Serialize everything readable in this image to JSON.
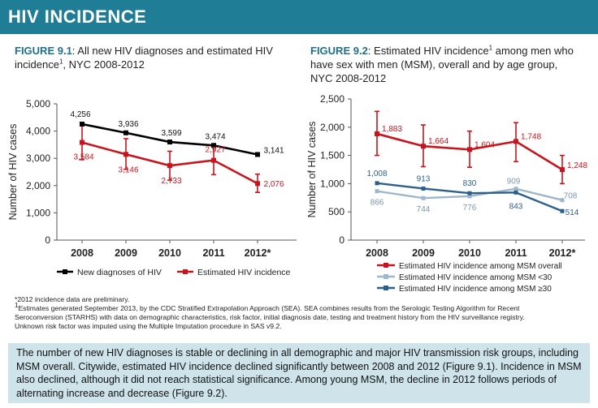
{
  "header": {
    "title": "HIV INCIDENCE"
  },
  "figure1": {
    "label": "FIGURE 9.1",
    "caption_a": ": All new HIV diagnoses and estimated HIV",
    "caption_b": "incidence",
    "caption_sup": "1",
    "caption_c": ", NYC 2008-2012"
  },
  "figure2": {
    "label": "FIGURE 9.2",
    "caption_a": ": Estimated HIV incidence",
    "caption_sup": "1",
    "caption_b": " among men who",
    "caption_c": "have sex with men (MSM), overall and by age group,",
    "caption_d": "NYC 2008-2012"
  },
  "chart_data": [
    {
      "type": "line",
      "title": "All new HIV diagnoses and estimated HIV incidence, NYC 2008-2012",
      "ylabel": "Number of HIV cases",
      "xlabel": "",
      "categories": [
        "2008",
        "2009",
        "2010",
        "2011",
        "2012*"
      ],
      "ylim": [
        0,
        5000
      ],
      "yticks": [
        0,
        1000,
        2000,
        3000,
        4000,
        5000
      ],
      "ytick_labels": [
        "0",
        "1,000",
        "2,000",
        "3,000",
        "4,000",
        "5,000"
      ],
      "grid": false,
      "legend_position": "bottom",
      "series": [
        {
          "name": "New diagnoses of HIV",
          "color": "#000000",
          "values": [
            4256,
            3936,
            3599,
            3474,
            3141
          ],
          "labels": [
            "4,256",
            "3,936",
            "3,599",
            "3,474",
            "3,141"
          ]
        },
        {
          "name": "Estimated HIV incidence",
          "color": "#c8141c",
          "values": [
            3584,
            3146,
            2733,
            2927,
            2076
          ],
          "labels": [
            "3,584",
            "3,146",
            "2,733",
            "2,927",
            "2,076"
          ],
          "ci_low": [
            2950,
            2600,
            2200,
            2400,
            1750
          ],
          "ci_high": [
            4200,
            3720,
            3260,
            3480,
            2420
          ]
        }
      ]
    },
    {
      "type": "line",
      "title": "Estimated HIV incidence among men who have sex with men (MSM), overall and by age group, NYC 2008-2012",
      "ylabel": "Number of HIV cases",
      "xlabel": "",
      "categories": [
        "2008",
        "2009",
        "2010",
        "2011",
        "2012*"
      ],
      "ylim": [
        0,
        2500
      ],
      "yticks": [
        0,
        500,
        1000,
        1500,
        2000,
        2500
      ],
      "ytick_labels": [
        "0",
        "500",
        "1,000",
        "1,500",
        "2,000",
        "2,500"
      ],
      "grid": false,
      "legend_position": "bottom",
      "series": [
        {
          "name": "Estimated HIV incidence among MSM overall",
          "color": "#c8141c",
          "values": [
            1883,
            1664,
            1604,
            1748,
            1248
          ],
          "labels": [
            "1,883",
            "1,664",
            "1,604",
            "1,748",
            "1,248"
          ],
          "ci_low": [
            1500,
            1300,
            1290,
            1390,
            1000
          ],
          "ci_high": [
            2280,
            2040,
            1930,
            2080,
            1500
          ]
        },
        {
          "name": "Estimated HIV incidence among MSM <30",
          "color": "#9db7cc",
          "values": [
            866,
            744,
            776,
            909,
            708
          ],
          "labels": [
            "866",
            "744",
            "776",
            "909",
            "708"
          ]
        },
        {
          "name": "Estimated HIV incidence among MSM ≥30",
          "color": "#2d5f8a",
          "values": [
            1008,
            913,
            830,
            843,
            514
          ],
          "labels": [
            "1,008",
            "913",
            "830",
            "843",
            "514"
          ]
        }
      ]
    }
  ],
  "notes": {
    "line1": "*2012 incidence data are preliminary.",
    "line2_sup": "1",
    "line2": "Estimates generated September 2013, by the CDC Stratified Extrapolation Approach (SEA).  SEA combines results from the Serologic Testing Algorithm for Recent",
    "line3": "Seroconversion (STARHS) with data on demographic characteristics, risk factor, initial diagnosis date, testing and treatment history from the HIV surveillance registry.",
    "line4": "Unknown risk factor was imputed using the Multiple Imputation procedure in SAS v9.2."
  },
  "summary": {
    "text": "The number of new HIV diagnoses is stable or declining in all demographic and major HIV transmission risk groups, including MSM overall. Citywide, estimated HIV incidence declined significantly between 2008 and 2012 (Figure 9.1). Incidence in MSM also declined, although it did not reach statistical significance. Among young MSM, the decline in 2012 follows periods of alternating increase and decrease (Figure 9.2)."
  }
}
